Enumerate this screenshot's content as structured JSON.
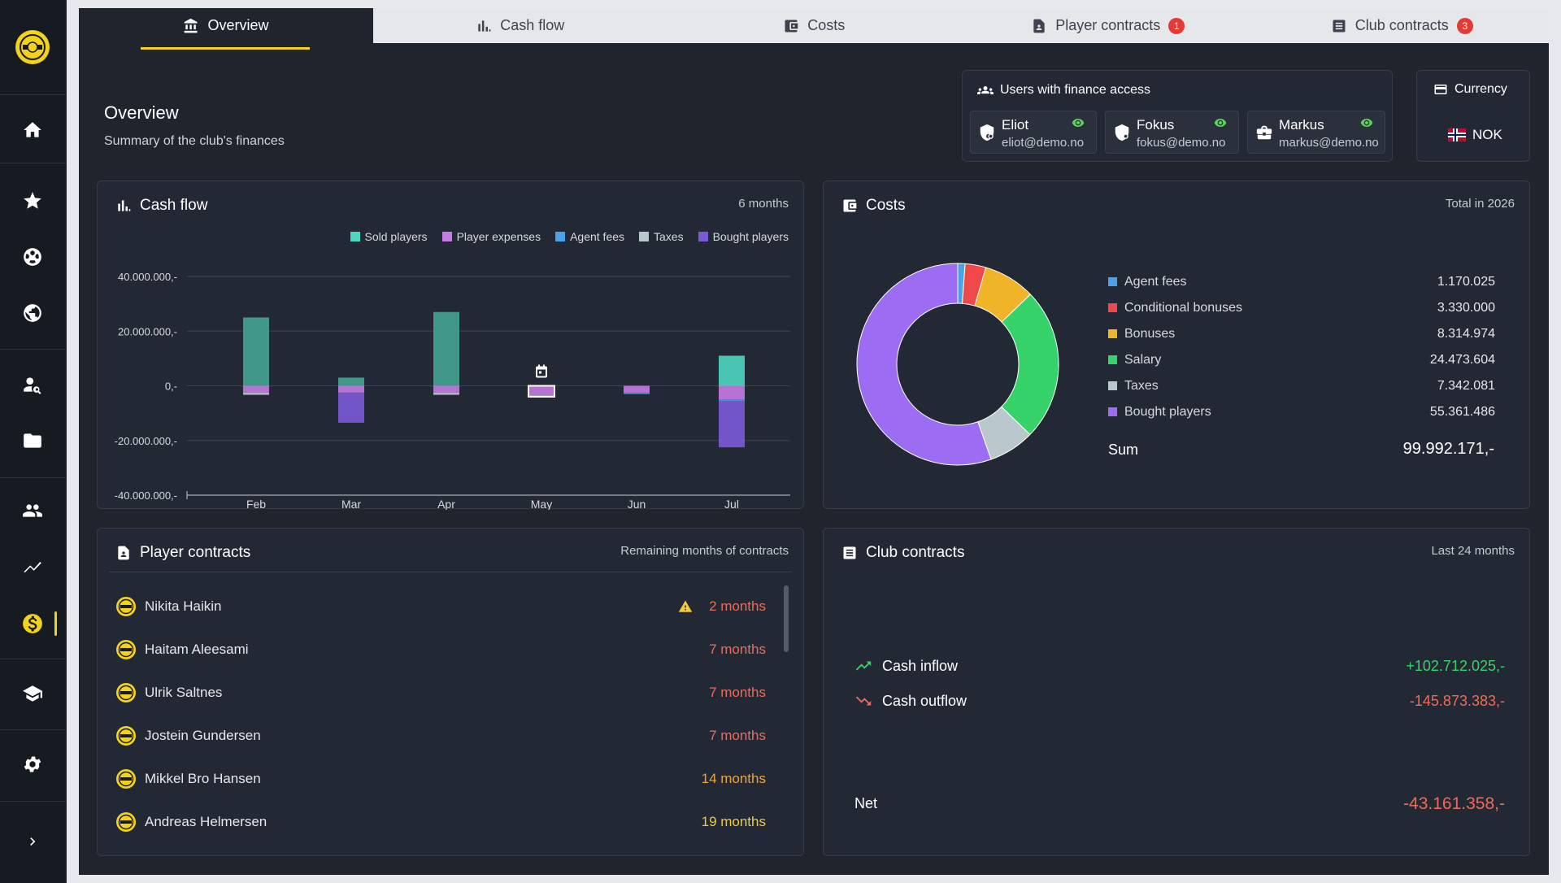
{
  "sidebar": {
    "items": [
      "home-icon",
      "star-icon",
      "soccer-ball-icon",
      "globe-icon",
      "scout-icon",
      "folder-icon",
      "group-icon",
      "trend-icon",
      "dollar-icon",
      "school-icon",
      "gear-icon",
      "chevron-right-icon"
    ],
    "active": "dollar-icon"
  },
  "tabs": [
    {
      "label": "Overview",
      "icon": "bank-icon",
      "active": true
    },
    {
      "label": "Cash flow",
      "icon": "bar-chart-icon"
    },
    {
      "label": "Costs",
      "icon": "wallet-icon"
    },
    {
      "label": "Player contracts",
      "icon": "contract-icon",
      "badge": "1"
    },
    {
      "label": "Club contracts",
      "icon": "document-icon",
      "badge": "3"
    }
  ],
  "header": {
    "title": "Overview",
    "subtitle": "Summary of the club's finances"
  },
  "finance_access": {
    "title": "Users with finance access",
    "users": [
      {
        "name": "Eliot",
        "email": "eliot@demo.no"
      },
      {
        "name": "Fokus",
        "email": "fokus@demo.no"
      },
      {
        "name": "Markus",
        "email": "markus@demo.no"
      }
    ]
  },
  "currency": {
    "title": "Currency",
    "value": "NOK"
  },
  "cashflow": {
    "title": "Cash flow",
    "hint": "6 months",
    "legend": [
      "Sold players",
      "Player expenses",
      "Agent fees",
      "Taxes",
      "Bought players"
    ]
  },
  "costs": {
    "title": "Costs",
    "hint": "Total in 2026",
    "sum_label": "Sum",
    "sum_value": "99.992.171,-",
    "items": [
      {
        "label": "Agent fees",
        "value": "1.170.025",
        "color": "#4aa3e8"
      },
      {
        "label": "Conditional bonuses",
        "value": "3.330.000",
        "color": "#f04848"
      },
      {
        "label": "Bonuses",
        "value": "8.314.974",
        "color": "#f0b429"
      },
      {
        "label": "Salary",
        "value": "24.473.604",
        "color": "#36d36b"
      },
      {
        "label": "Taxes",
        "value": "7.342.081",
        "color": "#b9c8cc"
      },
      {
        "label": "Bought players",
        "value": "55.361.486",
        "color": "#9c6cf2"
      }
    ]
  },
  "player_contracts": {
    "title": "Player contracts",
    "hint": "Remaining months of contracts",
    "rows": [
      {
        "name": "Nikita Haikin",
        "months": "2 months",
        "warn": true,
        "color": "#f06a5a"
      },
      {
        "name": "Haitam Aleesami",
        "months": "7 months",
        "color": "#f06a5a"
      },
      {
        "name": "Ulrik Saltnes",
        "months": "7 months",
        "color": "#f06a5a"
      },
      {
        "name": "Jostein Gundersen",
        "months": "7 months",
        "color": "#f06a5a"
      },
      {
        "name": "Mikkel Bro Hansen",
        "months": "14 months",
        "color": "#f0a23c"
      },
      {
        "name": "Andreas Helmersen",
        "months": "19 months",
        "color": "#f0c93c"
      }
    ]
  },
  "club_contracts": {
    "title": "Club contracts",
    "hint": "Last 24 months",
    "inflow_label": "Cash inflow",
    "inflow_value": "+102.712.025,-",
    "outflow_label": "Cash outflow",
    "outflow_value": "-145.873.383,-",
    "net_label": "Net",
    "net_value": "-43.161.358,-"
  },
  "chart_data": [
    {
      "type": "bar",
      "title": "Cash flow",
      "categories": [
        "Feb",
        "Mar",
        "Apr",
        "May",
        "Jun",
        "Jul"
      ],
      "y_tick_labels": [
        "40.000.000,-",
        "20.000.000,-",
        "0,-",
        "-20.000.000,-",
        "-40.000.000,-"
      ],
      "ylim": [
        -40000000,
        40000000
      ],
      "stacked": true,
      "series": [
        {
          "name": "Sold players",
          "color": "#45a391",
          "values": [
            25000000,
            3000000,
            27000000,
            0,
            0,
            0
          ]
        },
        {
          "name": "Sold players (current)",
          "color": "#4fd6c2",
          "values": [
            0,
            0,
            0,
            0,
            0,
            11000000
          ]
        },
        {
          "name": "Player expenses",
          "color": "#c77be6",
          "values": [
            -2500000,
            -2500000,
            -2500000,
            -3500000,
            -2500000,
            -5000000
          ]
        },
        {
          "name": "Agent fees",
          "color": "#4aa3e8",
          "values": [
            0,
            0,
            0,
            0,
            -500000,
            -500000
          ]
        },
        {
          "name": "Taxes",
          "color": "#b9c8cc",
          "values": [
            -800000,
            0,
            -800000,
            -500000,
            0,
            0
          ]
        },
        {
          "name": "Bought players",
          "color": "#7b5ad6",
          "values": [
            0,
            -11000000,
            0,
            0,
            0,
            -17000000
          ]
        }
      ],
      "grid": true,
      "legend": "top-right"
    },
    {
      "type": "pie",
      "title": "Costs",
      "donut": true,
      "labels": [
        "Agent fees",
        "Conditional bonuses",
        "Bonuses",
        "Salary",
        "Taxes",
        "Bought players"
      ],
      "values": [
        1170025,
        3330000,
        8314974,
        24473604,
        7342081,
        55361486
      ],
      "colors": [
        "#4aa3e8",
        "#f04848",
        "#f0b429",
        "#36d36b",
        "#b9c8cc",
        "#9c6cf2"
      ]
    }
  ]
}
